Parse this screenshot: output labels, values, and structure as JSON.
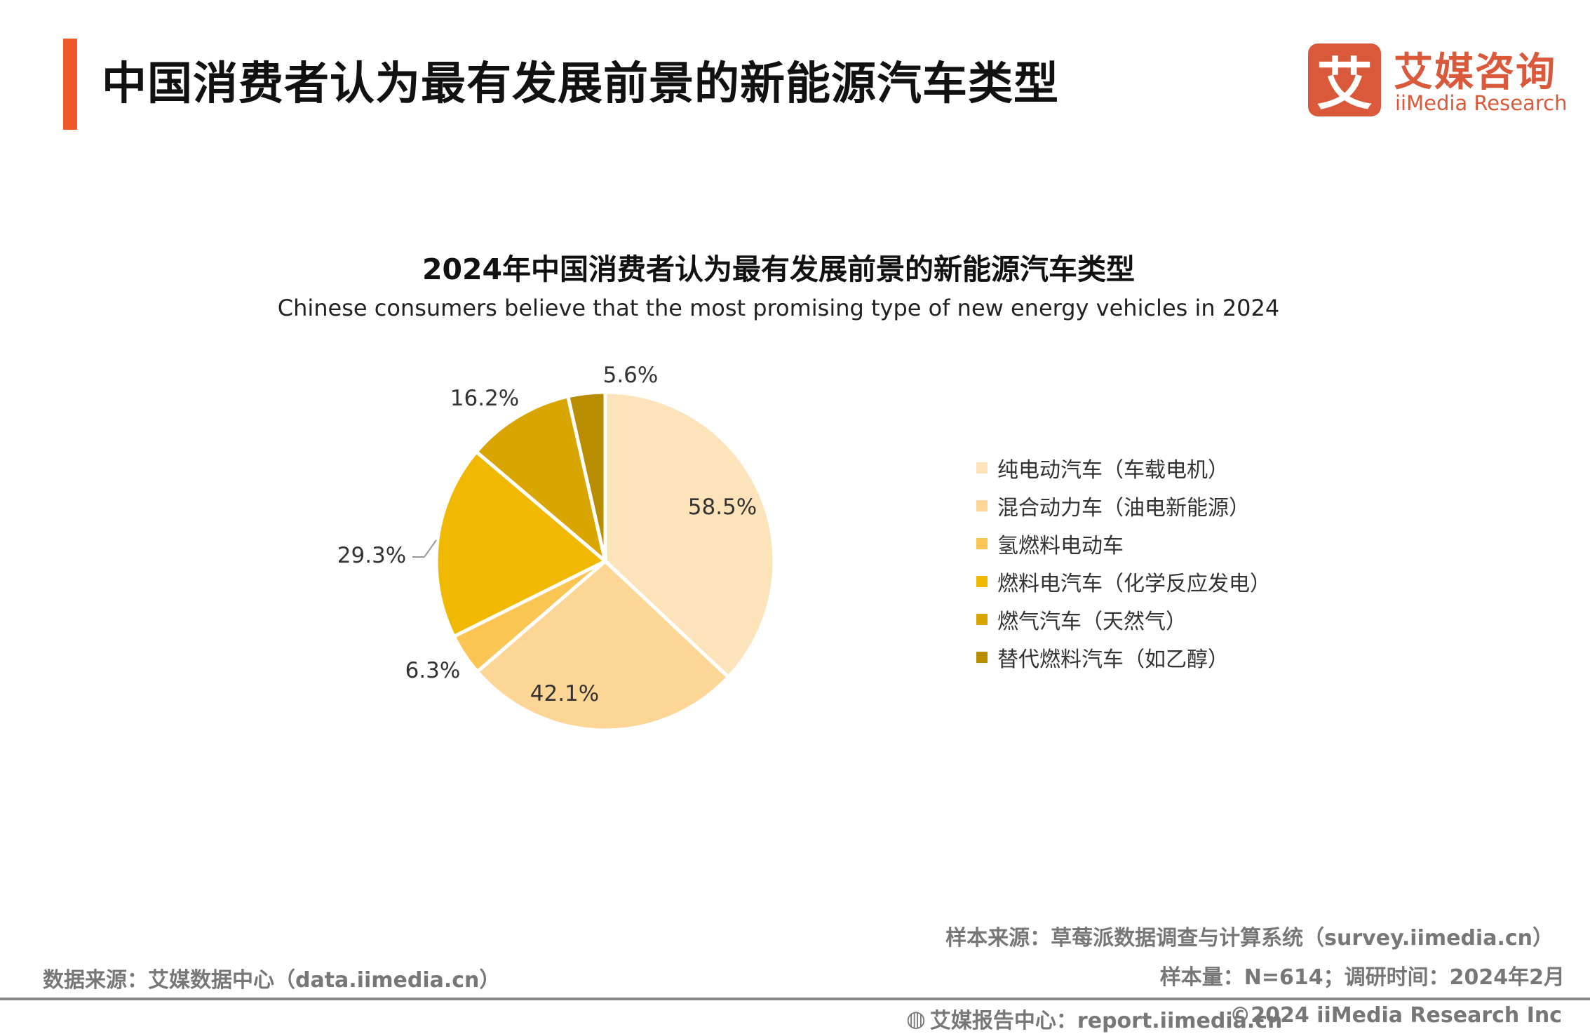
{
  "header": {
    "title": "中国消费者认为最有发展前景的新能源汽车类型",
    "accent_color": "#F0582A"
  },
  "logo": {
    "mark": "艾",
    "cn": "艾媒咨询",
    "en": "iiMedia Research",
    "color": "#D9593A"
  },
  "chart_data": {
    "type": "pie",
    "title": "2024年中国消费者认为最有发展前景的新能源汽车类型",
    "subtitle": "Chinese consumers believe that the most promising type of new energy vehicles in 2024",
    "categories": [
      "纯电动汽车（车载电机）",
      "混合动力车（油电新能源）",
      "氢燃料电动车",
      "燃料电汽车（化学反应发电）",
      "燃气汽车（天然气）",
      "替代燃料汽车（如乙醇）"
    ],
    "values": [
      58.5,
      42.1,
      6.3,
      29.3,
      16.2,
      5.6
    ],
    "labels": [
      "58.5%",
      "42.1%",
      "6.3%",
      "29.3%",
      "16.2%",
      "5.6%"
    ],
    "unit": "%",
    "colors": [
      "#FDE3BA",
      "#FDD594",
      "#FAC552",
      "#F0B800",
      "#D9A500",
      "#B88E00"
    ],
    "legend_position": "right"
  },
  "footer": {
    "sample_source": "样本来源：草莓派数据调查与计算系统（survey.iimedia.cn）",
    "sample_size": "样本量：N=614；调研时间：2024年2月",
    "data_source": "数据来源：艾媒数据中心（data.iimedia.cn）",
    "report_center": "艾媒报告中心：report.iimedia.cn",
    "copyright": "©2024  iiMedia Research  Inc"
  }
}
